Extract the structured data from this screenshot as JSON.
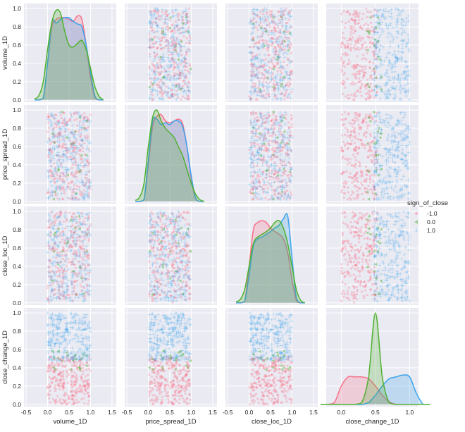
{
  "chart_data": {
    "type": "scatter",
    "kind": "pairplot",
    "variables": [
      "volume_1D",
      "price_spread_1D",
      "close_loc_1D",
      "close_change_1D"
    ],
    "hue": {
      "title": "sign_of_close",
      "levels": [
        "-1.0",
        "0.0",
        "1.0"
      ],
      "colors": [
        "#f77189",
        "#50b131",
        "#3ba3ec"
      ],
      "markers": [
        "circle",
        "triangle-left",
        "plus"
      ]
    },
    "n_points": 600,
    "xlim": [
      -0.55,
      1.6
    ],
    "xlim_last_column": [
      -0.22,
      1.13
    ],
    "ylim": [
      -0.025,
      1.055
    ],
    "grid": true,
    "legend_position": "right",
    "x_ticks": [
      "-0.5",
      "0.0",
      "0.5",
      "1.0",
      "1.5"
    ],
    "x_ticks_last_column": [
      "0.0",
      "0.5",
      "1.0"
    ],
    "y_ticks": [
      "0.0",
      "0.2",
      "0.4",
      "0.6",
      "0.8",
      "1.0"
    ],
    "kde_x": [
      -0.3,
      -0.2,
      -0.1,
      0,
      0.1,
      0.2,
      0.3,
      0.4,
      0.5,
      0.6,
      0.7,
      0.8,
      0.9,
      1.0,
      1.1,
      1.2,
      1.3
    ],
    "kde": {
      "volume_1D": {
        "-1.0": [
          0,
          0,
          0.02,
          0.4,
          0.8,
          0.88,
          0.9,
          0.9,
          0.88,
          0.86,
          0.92,
          0.88,
          0.6,
          0.25,
          0.03,
          0,
          0
        ],
        "0.0": [
          0.01,
          0.05,
          0.2,
          0.55,
          0.85,
          0.98,
          0.95,
          0.75,
          0.6,
          0.58,
          0.62,
          0.65,
          0.55,
          0.35,
          0.15,
          0.04,
          0
        ],
        "1.0": [
          0,
          0,
          0.02,
          0.4,
          0.85,
          0.84,
          0.88,
          0.9,
          0.9,
          0.86,
          0.83,
          0.8,
          0.6,
          0.3,
          0.05,
          0,
          0
        ]
      },
      "price_spread_1D": {
        "-1.0": [
          0,
          0,
          0.02,
          0.4,
          0.82,
          0.93,
          0.95,
          0.88,
          0.86,
          0.88,
          0.9,
          0.85,
          0.6,
          0.25,
          0.03,
          0,
          0
        ],
        "0.0": [
          0.01,
          0.05,
          0.2,
          0.6,
          0.92,
          1.0,
          0.88,
          0.8,
          0.75,
          0.7,
          0.6,
          0.5,
          0.35,
          0.2,
          0.08,
          0.02,
          0
        ],
        "1.0": [
          0,
          0,
          0.02,
          0.45,
          0.88,
          0.9,
          0.84,
          0.86,
          0.84,
          0.88,
          0.88,
          0.82,
          0.6,
          0.28,
          0.04,
          0,
          0
        ]
      },
      "close_loc_1D": {
        "-1.0": [
          0,
          0,
          0.02,
          0.4,
          0.8,
          0.88,
          0.9,
          0.88,
          0.82,
          0.78,
          0.75,
          0.7,
          0.55,
          0.25,
          0.03,
          0,
          0
        ],
        "0.0": [
          0.01,
          0.04,
          0.15,
          0.4,
          0.65,
          0.72,
          0.75,
          0.78,
          0.82,
          0.88,
          0.9,
          0.82,
          0.65,
          0.4,
          0.15,
          0.03,
          0
        ],
        "1.0": [
          0,
          0,
          0.02,
          0.3,
          0.62,
          0.7,
          0.72,
          0.75,
          0.78,
          0.82,
          0.85,
          0.92,
          0.95,
          0.5,
          0.06,
          0,
          0
        ]
      },
      "close_change_1D": {
        "-1.0": [
          0,
          0,
          0.02,
          0.2,
          0.3,
          0.3,
          0.3,
          0.28,
          0.2,
          0.1,
          0.03,
          0,
          0,
          0,
          0,
          0,
          0
        ],
        "0.0": [
          0,
          0,
          0,
          0,
          0,
          0,
          0.02,
          0.3,
          1.0,
          0.3,
          0.02,
          0,
          0,
          0,
          0,
          0,
          0
        ],
        "1.0": [
          0,
          0,
          0,
          0,
          0,
          0,
          0,
          0.02,
          0.1,
          0.2,
          0.28,
          0.3,
          0.32,
          0.3,
          0.12,
          0,
          0
        ]
      }
    }
  }
}
